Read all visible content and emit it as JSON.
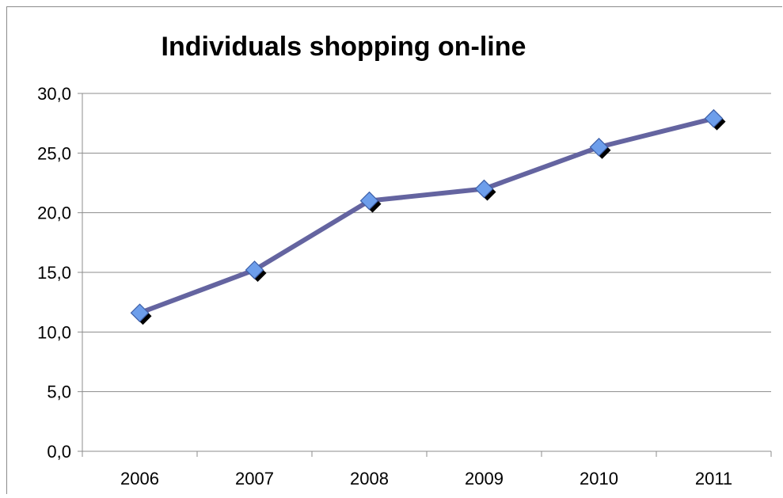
{
  "chart_data": {
    "type": "line",
    "title": "Individuals shopping on-line",
    "xlabel": "",
    "ylabel": "",
    "categories": [
      "2006",
      "2007",
      "2008",
      "2009",
      "2010",
      "2011"
    ],
    "series": [
      {
        "values": [
          11.6,
          15.2,
          21.0,
          22.0,
          25.5,
          27.9
        ]
      }
    ],
    "ylim": [
      0,
      30
    ],
    "yticks": [
      "0,0",
      "5,0",
      "10,0",
      "15,0",
      "20,0",
      "25,0",
      "30,0"
    ],
    "grid": true,
    "legend": "none",
    "colors": {
      "line": "#6464a0",
      "marker": "#6d9eeb",
      "marker_shadow": "#000000"
    }
  }
}
